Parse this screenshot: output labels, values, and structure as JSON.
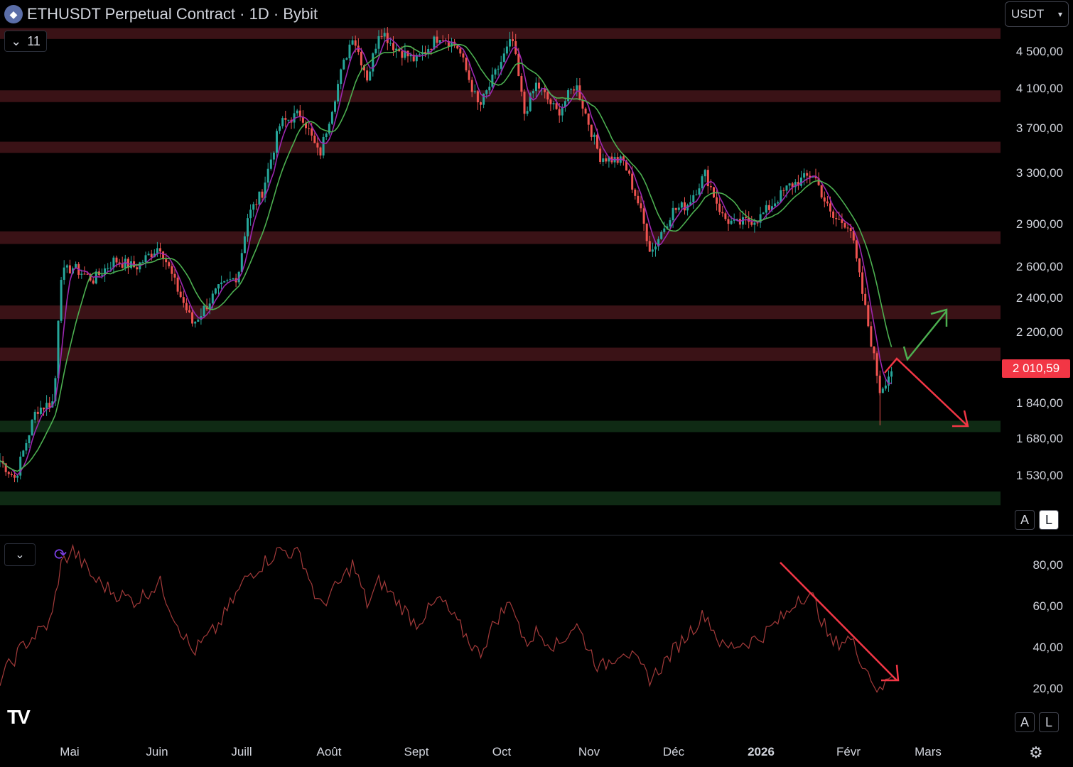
{
  "header": {
    "title": "ETHUSDT Perpetual Contract · 1D · Bybit",
    "indicator_count": "11",
    "currency": "USDT"
  },
  "price_axis": [
    "4 500,00",
    "4 100,00",
    "3 700,00",
    "3 300,00",
    "2 900,00",
    "2 600,00",
    "2 400,00",
    "2 200,00",
    "1 840,00",
    "1 680,00",
    "1 530,00"
  ],
  "current_price": "2 010,59",
  "rsi_axis": [
    "80,00",
    "60,00",
    "40,00",
    "20,00"
  ],
  "scale_buttons": {
    "auto": "A",
    "log": "L"
  },
  "time_axis": [
    "Mai",
    "Juin",
    "Juill",
    "Août",
    "Sept",
    "Oct",
    "Nov",
    "Déc",
    "2026",
    "Févr",
    "Mars"
  ],
  "colors": {
    "background": "#000000",
    "up": "#26a69a",
    "down": "#ef5350",
    "resistance_zone": "#3a1216",
    "support_zone": "#0f2a14",
    "ma_fast": "#9c27b0",
    "ma_slow": "#4caf50",
    "rsi": "#a33a3a",
    "badge": "#f23645",
    "arrow_up": "#4caf50",
    "arrow_down": "#f23645"
  },
  "icons": {
    "coin": "ethereum-icon",
    "toggle": "chevron-down-icon",
    "sync": "sync-icon",
    "logo": "tradingview-logo",
    "settings": "gear-icon"
  },
  "chart_data": {
    "type": "candlestick",
    "symbol": "ETHUSDT",
    "interval": "1D",
    "y_scale": "log",
    "x_range": [
      "2025-04-19",
      "2026-03-17"
    ],
    "resistance_zones": [
      [
        4650,
        4780
      ],
      [
        3960,
        4080
      ],
      [
        3480,
        3580
      ],
      [
        2760,
        2850
      ],
      [
        2280,
        2360
      ],
      [
        2050,
        2120
      ]
    ],
    "support_zones": [
      [
        1710,
        1760
      ],
      [
        1420,
        1470
      ]
    ],
    "price_path": [
      [
        "2025-04-19",
        1590
      ],
      [
        "2025-04-24",
        1520
      ],
      [
        "2025-05-01",
        1810
      ],
      [
        "2025-05-07",
        1850
      ],
      [
        "2025-05-09",
        2550
      ],
      [
        "2025-05-13",
        2600
      ],
      [
        "2025-05-20",
        2520
      ],
      [
        "2025-05-27",
        2650
      ],
      [
        "2025-06-03",
        2600
      ],
      [
        "2025-06-11",
        2750
      ],
      [
        "2025-06-16",
        2500
      ],
      [
        "2025-06-22",
        2250
      ],
      [
        "2025-06-30",
        2450
      ],
      [
        "2025-07-07",
        2550
      ],
      [
        "2025-07-10",
        2950
      ],
      [
        "2025-07-15",
        3150
      ],
      [
        "2025-07-21",
        3750
      ],
      [
        "2025-07-28",
        3850
      ],
      [
        "2025-08-03",
        3450
      ],
      [
        "2025-08-10",
        4250
      ],
      [
        "2025-08-14",
        4700
      ],
      [
        "2025-08-19",
        4200
      ],
      [
        "2025-08-23",
        4780
      ],
      [
        "2025-08-28",
        4550
      ],
      [
        "2025-09-04",
        4400
      ],
      [
        "2025-09-12",
        4700
      ],
      [
        "2025-09-18",
        4550
      ],
      [
        "2025-09-25",
        3900
      ],
      [
        "2025-10-01",
        4300
      ],
      [
        "2025-10-06",
        4650
      ],
      [
        "2025-10-10",
        3850
      ],
      [
        "2025-10-14",
        4150
      ],
      [
        "2025-10-21",
        3850
      ],
      [
        "2025-10-27",
        4150
      ],
      [
        "2025-11-04",
        3450
      ],
      [
        "2025-11-12",
        3400
      ],
      [
        "2025-11-17",
        3050
      ],
      [
        "2025-11-21",
        2700
      ],
      [
        "2025-11-28",
        3000
      ],
      [
        "2025-12-03",
        3050
      ],
      [
        "2025-12-09",
        3300
      ],
      [
        "2025-12-15",
        2950
      ],
      [
        "2025-12-19",
        2900
      ],
      [
        "2025-12-27",
        2950
      ],
      [
        "2026-01-06",
        3200
      ],
      [
        "2026-01-14",
        3300
      ],
      [
        "2026-01-20",
        2950
      ],
      [
        "2026-01-26",
        2900
      ],
      [
        "2026-01-31",
        2350
      ],
      [
        "2026-02-05",
        1900
      ],
      [
        "2026-02-09",
        2010
      ]
    ],
    "low_wick": 1740,
    "rsi": [
      [
        "2025-04-19",
        25
      ],
      [
        "2025-04-27",
        42
      ],
      [
        "2025-05-06",
        53
      ],
      [
        "2025-05-09",
        80
      ],
      [
        "2025-05-13",
        88
      ],
      [
        "2025-05-20",
        74
      ],
      [
        "2025-05-27",
        67
      ],
      [
        "2025-06-03",
        63
      ],
      [
        "2025-06-11",
        72
      ],
      [
        "2025-06-16",
        55
      ],
      [
        "2025-06-22",
        38
      ],
      [
        "2025-06-30",
        50
      ],
      [
        "2025-07-10",
        75
      ],
      [
        "2025-07-21",
        88
      ],
      [
        "2025-07-28",
        85
      ],
      [
        "2025-08-03",
        60
      ],
      [
        "2025-08-10",
        72
      ],
      [
        "2025-08-14",
        81
      ],
      [
        "2025-08-19",
        61
      ],
      [
        "2025-08-23",
        73
      ],
      [
        "2025-09-04",
        52
      ],
      [
        "2025-09-12",
        64
      ],
      [
        "2025-09-25",
        37
      ],
      [
        "2025-10-01",
        55
      ],
      [
        "2025-10-06",
        63
      ],
      [
        "2025-10-10",
        42
      ],
      [
        "2025-10-14",
        48
      ],
      [
        "2025-10-21",
        41
      ],
      [
        "2025-10-27",
        52
      ],
      [
        "2025-11-04",
        30
      ],
      [
        "2025-11-12",
        40
      ],
      [
        "2025-11-21",
        25
      ],
      [
        "2025-11-28",
        38
      ],
      [
        "2025-12-09",
        57
      ],
      [
        "2025-12-15",
        40
      ],
      [
        "2025-12-27",
        45
      ],
      [
        "2026-01-06",
        58
      ],
      [
        "2026-01-09",
        66
      ],
      [
        "2026-01-14",
        64
      ],
      [
        "2026-01-20",
        42
      ],
      [
        "2026-01-26",
        45
      ],
      [
        "2026-02-05",
        18
      ],
      [
        "2026-02-09",
        29
      ]
    ],
    "annotations": [
      {
        "type": "arrow",
        "color": "arrow_up",
        "direction": "up"
      },
      {
        "type": "arrow",
        "color": "arrow_down",
        "direction": "down"
      },
      {
        "type": "arrow",
        "color": "arrow_down",
        "pane": "rsi",
        "direction": "down"
      }
    ]
  }
}
